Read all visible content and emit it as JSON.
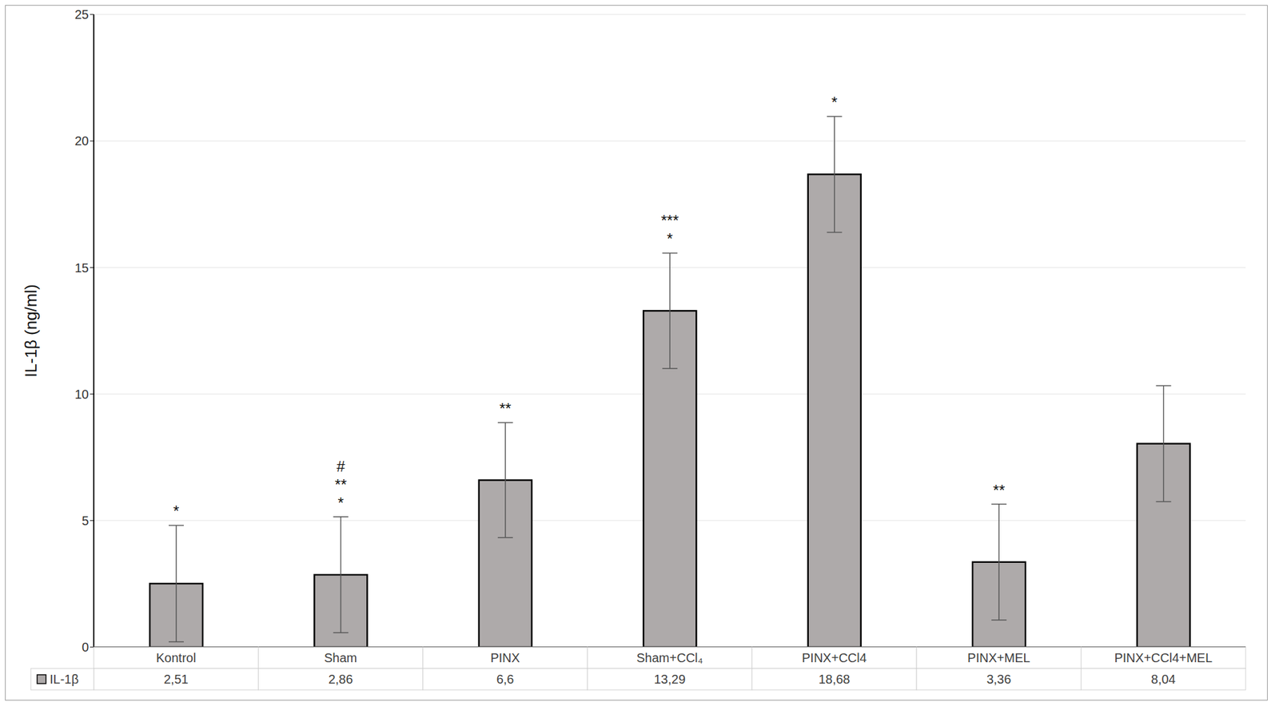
{
  "chart_data": {
    "type": "bar",
    "y_label": "IL-1β (ng/ml)",
    "categories": [
      "Kontrol",
      "Sham",
      "PINX",
      "Sham+CCl₄",
      "PINX+CCl4",
      "PINX+MEL",
      "PINX+CCl4+MEL"
    ],
    "series": [
      {
        "name": "IL-1β",
        "color": "#aeaaaa",
        "values": [
          2.51,
          2.86,
          6.6,
          13.29,
          18.68,
          3.36,
          8.04
        ],
        "value_labels": [
          "2,51",
          "2,86",
          "6,6",
          "13,29",
          "18,68",
          "3,36",
          "8,04"
        ],
        "errors": [
          2.3,
          2.29,
          2.27,
          2.28,
          2.29,
          2.29,
          2.29
        ]
      }
    ],
    "annotations": [
      [
        "*"
      ],
      [
        "#",
        "**",
        "*"
      ],
      [
        "**"
      ],
      [
        "***",
        "*"
      ],
      [
        "*"
      ],
      [
        "**"
      ],
      []
    ],
    "ylim": [
      0,
      25
    ],
    "yticks": [
      0,
      5,
      10,
      15,
      20,
      25
    ],
    "grid": true,
    "data_labels": false
  }
}
